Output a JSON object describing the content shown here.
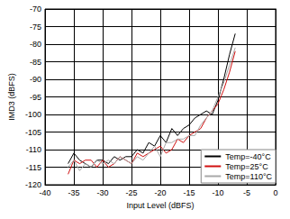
{
  "chart_data": {
    "type": "line",
    "x_label": "Input Level (dBFS)",
    "y_label": "IMD3 (dBFS)",
    "x": [
      -36,
      -35,
      -34,
      -33,
      -32,
      -31,
      -30,
      -29,
      -28,
      -27,
      -26,
      -25,
      -24,
      -23,
      -22,
      -21,
      -20,
      -19,
      -18,
      -17,
      -16,
      -15,
      -14,
      -13,
      -12,
      -11,
      -10,
      -9,
      -8,
      -7
    ],
    "series": [
      {
        "name": "Temp=-40°C",
        "color": "#000000",
        "values": [
          -114,
          -111,
          -113,
          -114,
          -115,
          -113,
          -113,
          -114,
          -112,
          -113,
          -112,
          -112,
          -110,
          -111,
          -108,
          -109,
          -106,
          -108,
          -104,
          -106,
          -104,
          -103,
          -101,
          -100,
          -99,
          -100,
          -96,
          -90,
          -83,
          -77
        ]
      },
      {
        "name": "Temp=25°C",
        "color": "#d01010",
        "values": [
          -117,
          -113,
          -114,
          -113,
          -113,
          -115,
          -113,
          -115,
          -114,
          -112,
          -113,
          -114,
          -111,
          -112,
          -111,
          -110,
          -109,
          -111,
          -110,
          -107,
          -108,
          -106,
          -105,
          -104,
          -101,
          -99,
          -97,
          -93,
          -88,
          -82
        ]
      },
      {
        "name": "Temp=110°C",
        "color": "#a8a8a8",
        "values": [
          -115,
          -113,
          -116,
          -114,
          -115,
          -113,
          -114,
          -113,
          -114,
          -112,
          -113,
          -114,
          -112,
          -113,
          -111,
          -109,
          -112,
          -108,
          -108,
          -107,
          -107,
          -106,
          -106,
          -103,
          -101,
          -99,
          -95,
          -91,
          -86,
          -81
        ]
      }
    ],
    "xlim": [
      -40,
      0
    ],
    "xticks": [
      -40,
      -35,
      -30,
      -25,
      -20,
      -15,
      -10,
      -5,
      0
    ],
    "ylim": [
      -120,
      -70
    ],
    "yticks": [
      -120,
      -115,
      -110,
      -105,
      -100,
      -95,
      -90,
      -85,
      -80,
      -75,
      -70
    ],
    "grid": true,
    "legend": "lower right"
  }
}
